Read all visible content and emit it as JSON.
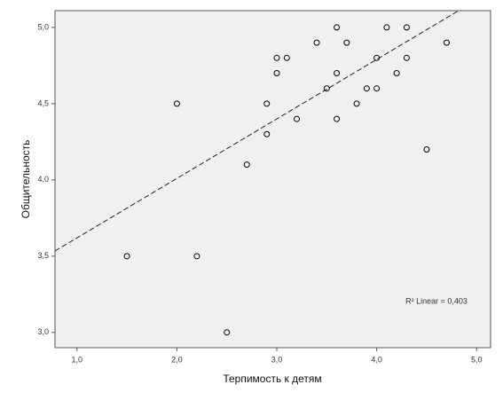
{
  "chart_data": {
    "type": "scatter",
    "x_label": "Терпимость к детям",
    "y_label": "Общительность",
    "annotation": "R² Linear = 0,403",
    "x": [
      1.5,
      2.0,
      2.2,
      2.5,
      2.7,
      2.9,
      2.9,
      3.0,
      3.0,
      3.1,
      3.2,
      3.4,
      3.5,
      3.6,
      3.6,
      3.6,
      3.7,
      3.8,
      3.9,
      4.0,
      4.0,
      4.1,
      4.2,
      4.3,
      4.3,
      4.5,
      4.7
    ],
    "values": [
      3.5,
      4.5,
      3.5,
      3.0,
      4.1,
      4.5,
      4.3,
      4.8,
      4.7,
      4.8,
      4.4,
      4.9,
      4.6,
      5.0,
      4.7,
      4.4,
      4.9,
      4.5,
      4.6,
      4.8,
      4.6,
      5.0,
      4.7,
      5.0,
      4.8,
      4.2,
      4.9
    ],
    "color": "#000000",
    "trendline": {
      "intercept": 3.23,
      "slope": 0.39
    },
    "xlim": [
      0.78,
      5.14
    ],
    "ylim": [
      2.9,
      5.11
    ],
    "xticks": [
      {
        "value": 1,
        "label": "1,0"
      },
      {
        "value": 2,
        "label": "2,0"
      },
      {
        "value": 3,
        "label": "3,0"
      },
      {
        "value": 4,
        "label": "4,0"
      },
      {
        "value": 5,
        "label": "5,0"
      }
    ],
    "yticks": [
      {
        "value": 3,
        "label": "3,0"
      },
      {
        "value": 3.5,
        "label": "3,5"
      },
      {
        "value": 4,
        "label": "4,0"
      },
      {
        "value": 4.5,
        "label": "4,5"
      },
      {
        "value": 5,
        "label": "5,0"
      }
    ]
  }
}
